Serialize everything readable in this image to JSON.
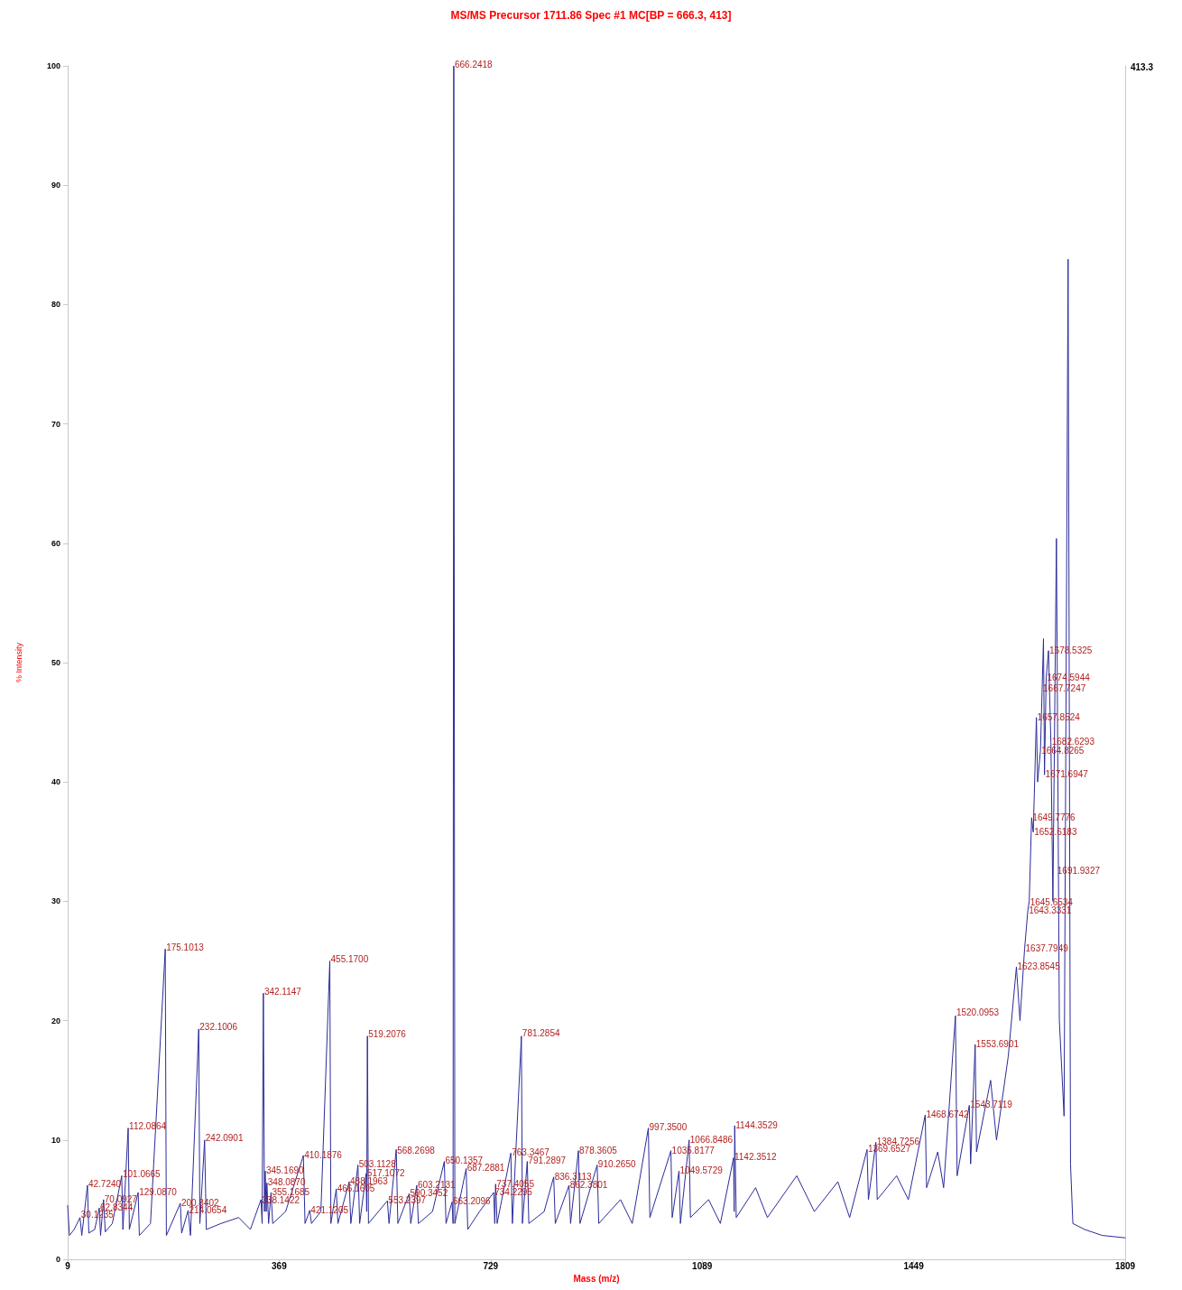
{
  "chart_data": {
    "type": "line",
    "title": "MS/MS Precursor 1711.86 Spec #1 MC[BP = 666.3, 413]",
    "xlabel": "Mass (m/z)",
    "ylabel": "% Intensity",
    "xlim": [
      9,
      1809
    ],
    "xticks": [
      9,
      369,
      729,
      1089,
      1449,
      1809
    ],
    "ylim": [
      0,
      100
    ],
    "yticks": [
      0,
      10,
      20,
      30,
      40,
      50,
      60,
      70,
      80,
      90,
      100
    ],
    "grid": false,
    "marker": "none",
    "line_style": "solid",
    "series": [
      {
        "color": "#2b2b99",
        "x": [
          9,
          12,
          20,
          30,
          33,
          42.7,
          45,
          55,
          62.8,
          65,
          70.1,
          73,
          85,
          101,
          103,
          112,
          114,
          129,
          131,
          150,
          175.1,
          177,
          200.8,
          203,
          214,
          218,
          232.1,
          234,
          242.1,
          245,
          270,
          300,
          320,
          338.1,
          340,
          342.1,
          344,
          345.2,
          347,
          348.1,
          351,
          355.2,
          358,
          380,
          410.2,
          413,
          421.1,
          424,
          440,
          455.2,
          457,
          466.2,
          469,
          488.2,
          491,
          503.1,
          506,
          517.1,
          518,
          519.2,
          521,
          553.2,
          556,
          568.3,
          571,
          590.3,
          593,
          603.2,
          606,
          630,
          650.1,
          653,
          663.2,
          665,
          666.2,
          668,
          687.3,
          690,
          710,
          734.2,
          736,
          737.4,
          740,
          763.3,
          766,
          781.3,
          783,
          791.3,
          794,
          820,
          836.3,
          839,
          862.4,
          865,
          878.4,
          881,
          910.3,
          913,
          950,
          970,
          997.4,
          1000,
          1035.8,
          1038,
          1049.6,
          1052,
          1066.8,
          1069,
          1100,
          1120,
          1142.4,
          1143.5,
          1144.4,
          1147,
          1180,
          1200,
          1250,
          1280,
          1320,
          1340,
          1369.7,
          1372,
          1384.7,
          1387,
          1420,
          1440,
          1468.7,
          1471,
          1490,
          1500,
          1520.1,
          1523,
          1543.7,
          1546,
          1553.7,
          1556,
          1580,
          1590,
          1610,
          1623.9,
          1630,
          1637.8,
          1643.3,
          1645.7,
          1649.8,
          1652.6,
          1657.9,
          1660,
          1664.8,
          1667.7,
          1670,
          1671.7,
          1674.6,
          1678.5,
          1682.6,
          1686,
          1692,
          1697,
          1705,
          1711.9,
          1716,
          1720,
          1740,
          1770,
          1809
        ],
        "values": [
          4.5,
          2,
          2.5,
          3.5,
          2,
          6.2,
          2.2,
          2.5,
          4.3,
          2,
          5,
          2.3,
          3,
          7,
          2.5,
          11,
          2.5,
          5.6,
          2,
          3,
          26,
          2,
          4.7,
          2.2,
          4.1,
          2,
          19.3,
          3,
          10,
          2.5,
          3,
          3.5,
          2.5,
          5,
          3,
          22.3,
          4,
          7.4,
          4,
          6.4,
          3,
          5.6,
          3,
          4,
          8.7,
          3,
          4.1,
          3,
          4,
          25,
          3,
          5.9,
          3,
          6.5,
          3,
          7.9,
          3,
          7.2,
          4,
          18.7,
          3,
          4.9,
          3,
          9.2,
          3,
          5.5,
          3,
          6.2,
          3,
          4,
          8.2,
          3,
          4.8,
          3,
          100,
          3,
          7.6,
          2.5,
          4,
          5.6,
          3,
          6.3,
          3,
          8.9,
          3,
          18.7,
          3,
          8.2,
          3,
          4,
          6.9,
          3,
          6.2,
          3,
          9.1,
          3,
          7.9,
          3,
          5,
          3,
          11,
          3.5,
          9.1,
          3.5,
          7.4,
          3,
          10,
          3.5,
          5,
          3,
          8.5,
          4,
          11.2,
          3.5,
          6,
          3.5,
          7,
          4,
          6.5,
          3.5,
          9.2,
          5,
          9.8,
          5,
          7,
          5,
          12.1,
          6,
          9,
          6,
          20.4,
          7,
          12.9,
          8,
          18,
          9,
          15,
          10,
          17,
          24.5,
          20,
          26,
          29.2,
          30,
          37,
          35.8,
          45.4,
          40,
          42.6,
          47.8,
          52,
          40.6,
          48.7,
          51,
          43.3,
          30,
          60.4,
          20,
          12,
          83.8,
          8,
          3,
          2.5,
          2,
          1.8
        ]
      }
    ],
    "annotations": [
      "413.3",
      {
        "text": "666.2418",
        "x": 666.2418,
        "y": 100
      },
      {
        "text": "175.1013",
        "x": 175.1013,
        "y": 26.0
      },
      {
        "text": "455.1700",
        "x": 455.17,
        "y": 25.0
      },
      {
        "text": "342.1147",
        "x": 342.1147,
        "y": 22.3
      },
      {
        "text": "232.1006",
        "x": 232.1006,
        "y": 19.3
      },
      {
        "text": "519.2076",
        "x": 519.2076,
        "y": 18.7
      },
      {
        "text": "781.2854",
        "x": 781.2854,
        "y": 18.8
      },
      {
        "text": "112.0864",
        "x": 112.0864,
        "y": 11.0
      },
      {
        "text": "242.0901",
        "x": 242.0901,
        "y": 10.0
      },
      {
        "text": "410.1876",
        "x": 410.1876,
        "y": 8.6
      },
      {
        "text": "568.2698",
        "x": 568.2698,
        "y": 9.0
      },
      {
        "text": "503.1128",
        "x": 503.1128,
        "y": 7.8
      },
      {
        "text": "517.1072",
        "x": 517.1072,
        "y": 7.1
      },
      {
        "text": "345.1690",
        "x": 345.169,
        "y": 7.3
      },
      {
        "text": "101.0665",
        "x": 101.0665,
        "y": 7.0
      },
      {
        "text": "42.7240",
        "x": 42.724,
        "y": 6.2
      },
      {
        "text": "348.0870",
        "x": 348.087,
        "y": 6.3
      },
      {
        "text": "488.1963",
        "x": 488.1963,
        "y": 6.4
      },
      {
        "text": "129.0870",
        "x": 129.087,
        "y": 5.5
      },
      {
        "text": "355.1685",
        "x": 355.1685,
        "y": 5.5
      },
      {
        "text": "466.1605",
        "x": 466.1605,
        "y": 5.8
      },
      {
        "text": "70.0927",
        "x": 70.0927,
        "y": 4.9
      },
      {
        "text": "338.1422",
        "x": 338.1422,
        "y": 4.8
      },
      {
        "text": "200.8402",
        "x": 200.8402,
        "y": 4.6
      },
      {
        "text": "62.8344",
        "x": 62.8344,
        "y": 4.2
      },
      {
        "text": "214.0654",
        "x": 214.0654,
        "y": 4.0
      },
      {
        "text": "30.1235",
        "x": 30.1235,
        "y": 3.6
      },
      {
        "text": "421.1205",
        "x": 421.1205,
        "y": 4.0
      },
      {
        "text": "553.2397",
        "x": 553.2397,
        "y": 4.8
      },
      {
        "text": "590.3452",
        "x": 590.3452,
        "y": 5.4
      },
      {
        "text": "603.2131",
        "x": 603.2131,
        "y": 6.1
      },
      {
        "text": "650.1357",
        "x": 650.1357,
        "y": 8.1
      },
      {
        "text": "687.2881",
        "x": 687.2881,
        "y": 7.5
      },
      {
        "text": "663.2096",
        "x": 663.2096,
        "y": 4.7
      },
      {
        "text": "763.3467",
        "x": 763.3467,
        "y": 8.8
      },
      {
        "text": "791.2897",
        "x": 791.2897,
        "y": 8.1
      },
      {
        "text": "737.4055",
        "x": 737.4055,
        "y": 6.2
      },
      {
        "text": "734.2295",
        "x": 734.2295,
        "y": 5.5
      },
      {
        "text": "878.3605",
        "x": 878.3605,
        "y": 9.0
      },
      {
        "text": "836.3113",
        "x": 836.3113,
        "y": 6.8
      },
      {
        "text": "862.3801",
        "x": 862.3801,
        "y": 6.1
      },
      {
        "text": "910.2650",
        "x": 910.265,
        "y": 7.8
      },
      {
        "text": "997.3500",
        "x": 997.35,
        "y": 10.9
      },
      {
        "text": "1144.3529",
        "x": 1144.3529,
        "y": 11.1
      },
      {
        "text": "1066.8486",
        "x": 1066.8486,
        "y": 9.9
      },
      {
        "text": "1035.8177",
        "x": 1035.8177,
        "y": 9.0
      },
      {
        "text": "1142.3512",
        "x": 1142.3512,
        "y": 8.4
      },
      {
        "text": "1049.5729",
        "x": 1049.5729,
        "y": 7.3
      },
      {
        "text": "1384.7256",
        "x": 1384.7256,
        "y": 9.7
      },
      {
        "text": "1369.6527",
        "x": 1369.6527,
        "y": 9.1
      },
      {
        "text": "1468.6742",
        "x": 1468.6742,
        "y": 12.0
      },
      {
        "text": "1543.7119",
        "x": 1543.7119,
        "y": 12.8
      },
      {
        "text": "1520.0953",
        "x": 1520.0953,
        "y": 20.5
      },
      {
        "text": "1553.6901",
        "x": 1553.6901,
        "y": 17.9
      },
      {
        "text": "1623.8545",
        "x": 1623.8545,
        "y": 24.4
      },
      {
        "text": "1637.7949",
        "x": 1637.7949,
        "y": 25.9
      },
      {
        "text": "1643.3331",
        "x": 1643.3331,
        "y": 29.1
      },
      {
        "text": "1645.6534",
        "x": 1645.6534,
        "y": 29.8
      },
      {
        "text": "1691.9327",
        "x": 1691.9327,
        "y": 32.4
      },
      {
        "text": "1652.6183",
        "x": 1652.6183,
        "y": 35.7
      },
      {
        "text": "1649.7776",
        "x": 1649.7776,
        "y": 36.9
      },
      {
        "text": "1671.6947",
        "x": 1671.6947,
        "y": 40.5
      },
      {
        "text": "1664.8265",
        "x": 1664.8265,
        "y": 42.5
      },
      {
        "text": "1682.6293",
        "x": 1682.6293,
        "y": 43.2
      },
      {
        "text": "1657.8524",
        "x": 1657.8524,
        "y": 45.3
      },
      {
        "text": "1667.7247",
        "x": 1667.7247,
        "y": 47.7
      },
      {
        "text": "1674.5944",
        "x": 1674.5944,
        "y": 48.6
      },
      {
        "text": "1678.5325",
        "x": 1678.5325,
        "y": 50.9
      }
    ]
  }
}
